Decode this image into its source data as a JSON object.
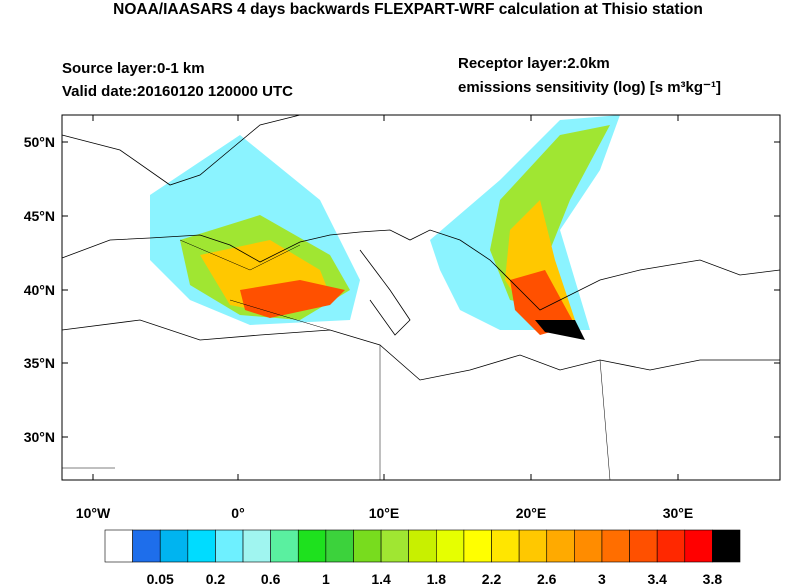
{
  "header": {
    "title": "NOAA/IAASARS 4 days backwards FLEXPART-WRF calculation at Thisio station",
    "source_layer": "Source layer:0-1 km",
    "valid_date": "Valid date:20160120 120000 UTC",
    "receptor_layer": "Receptor layer:2.0km",
    "units": "emissions sensitivity (log) [s m³kg⁻¹]"
  },
  "map": {
    "lat_labels": [
      "50°N",
      "45°N",
      "40°N",
      "35°N",
      "30°N"
    ],
    "lon_labels": [
      "10°W",
      "0°",
      "10°E",
      "20°E",
      "30°E"
    ]
  },
  "colorbar": {
    "colors": [
      "#ffffff",
      "#1e6eeb",
      "#00b4f0",
      "#00dcff",
      "#6ef0ff",
      "#a0f5f0",
      "#5af0a0",
      "#1ee11e",
      "#3cd23c",
      "#78dc1e",
      "#a0e632",
      "#c8f000",
      "#e6ff00",
      "#ffff00",
      "#ffe600",
      "#ffc800",
      "#ffaa00",
      "#ff8c00",
      "#ff6e00",
      "#ff5000",
      "#ff2800",
      "#ff0000",
      "#000000"
    ],
    "labels": [
      0.05,
      0.2,
      0.6,
      1,
      1.4,
      1.8,
      2.2,
      2.6,
      3,
      3.4,
      3.8
    ]
  }
}
